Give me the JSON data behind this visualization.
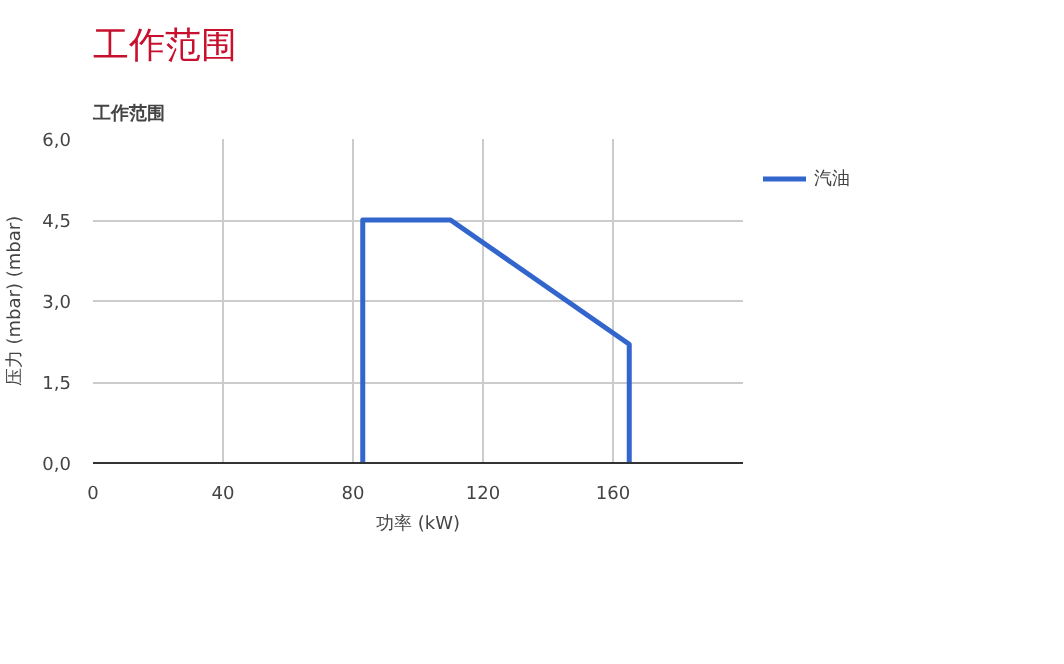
{
  "chart_data": {
    "type": "line",
    "title": "工作范围",
    "subtitle": "工作范围",
    "xlabel": "功率 (kW)",
    "ylabel": "压力 (mbar) (mbar)",
    "x": [
      83,
      83,
      110,
      165,
      165
    ],
    "series": [
      {
        "name": "汽油",
        "color": "#3366cc",
        "values": [
          0,
          4.5,
          4.5,
          2.2,
          0
        ]
      }
    ],
    "xlim": [
      0,
      200
    ],
    "xticks": [
      0,
      40,
      80,
      120,
      160
    ],
    "ylim": [
      0,
      6
    ],
    "yticks": [
      {
        "value": 0,
        "label": "0,0"
      },
      {
        "value": 1.5,
        "label": "1,5"
      },
      {
        "value": 3,
        "label": "3,0"
      },
      {
        "value": 4.5,
        "label": "4,5"
      },
      {
        "value": 6,
        "label": "6,0"
      }
    ],
    "grid": true,
    "legend": "top right",
    "marker": "none",
    "line_style": "solid"
  }
}
